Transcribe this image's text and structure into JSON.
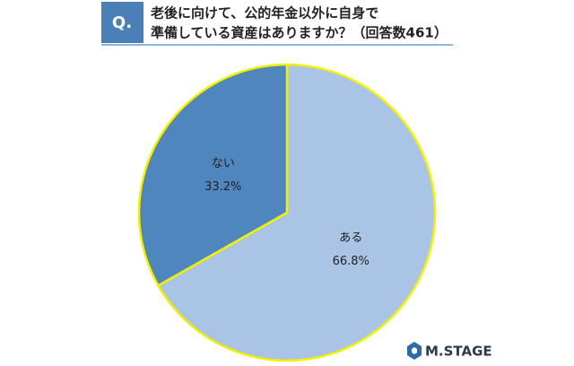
{
  "badge": "Q.",
  "logo": "M.STAGE",
  "chart_data": {
    "type": "pie",
    "title": [
      "老後に向けて、公的年金以外に自身で",
      "準備している資産はありますか？（回答数461）"
    ],
    "categories": [
      "ある",
      "ない"
    ],
    "values": [
      66.8,
      33.2
    ],
    "value_labels": [
      "66.8%",
      "33.2%"
    ],
    "colors": [
      "#a9c4e4",
      "#4f86be"
    ],
    "edge_color": "#f2f200"
  }
}
